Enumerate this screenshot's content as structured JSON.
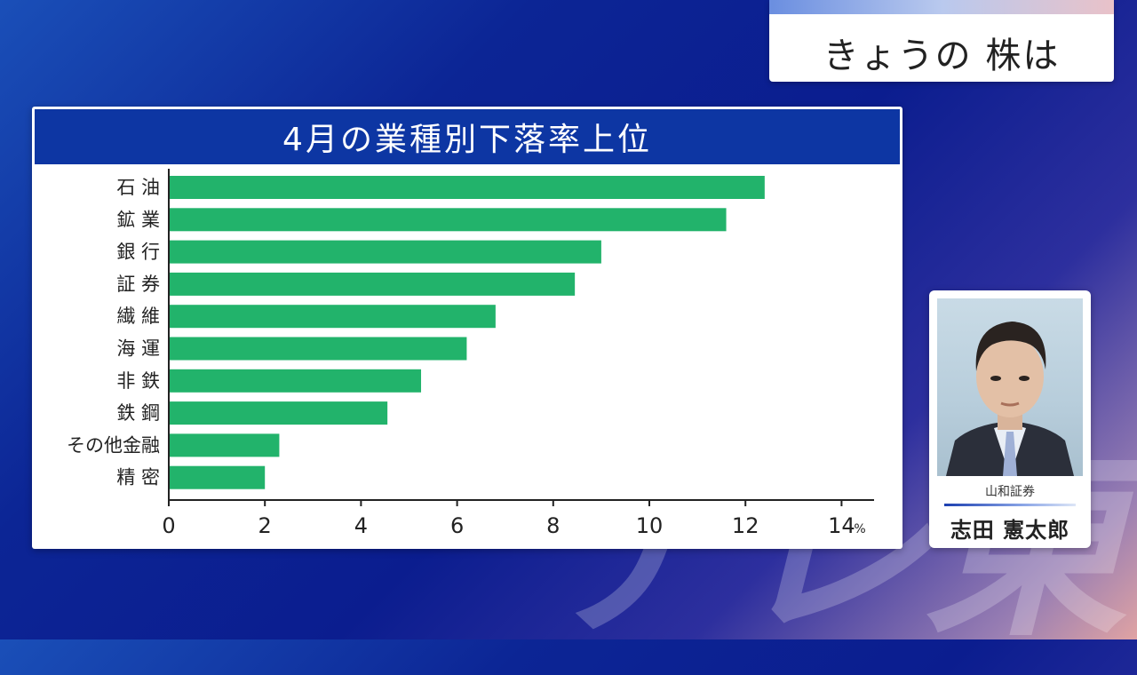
{
  "topic": {
    "label": "きょうの 株は"
  },
  "chart_data": {
    "type": "bar",
    "orientation": "horizontal",
    "title": "4月の業種別下落率上位",
    "categories": [
      "石 油",
      "鉱 業",
      "銀 行",
      "証 券",
      "繊 維",
      "海 運",
      "非 鉄",
      "鉄 鋼",
      "その他金融",
      "精 密"
    ],
    "values": [
      12.4,
      11.6,
      9.0,
      8.45,
      6.8,
      6.2,
      5.25,
      4.55,
      2.3,
      2.0
    ],
    "xlim": [
      0,
      14
    ],
    "ticks": [
      "0",
      "2",
      "4",
      "6",
      "8",
      "10",
      "12",
      "14"
    ],
    "unit": "%",
    "grid": false,
    "bar_color": "#22b36b"
  },
  "person": {
    "company": "山和証券",
    "name": "志田 憲太郎"
  },
  "watermark": {
    "text": "テレ東"
  },
  "colors": {
    "title_bar": "#0d36a3",
    "bar": "#22b36b"
  }
}
